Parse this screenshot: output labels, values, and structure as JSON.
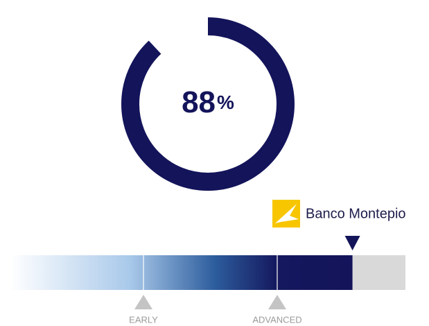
{
  "gauge": {
    "value": 88,
    "unit": "%"
  },
  "brand": {
    "name": "Banco Montepio"
  },
  "scale": {
    "stages": [
      {
        "label": "EARLY"
      },
      {
        "label": "ADVANCED"
      }
    ]
  }
}
